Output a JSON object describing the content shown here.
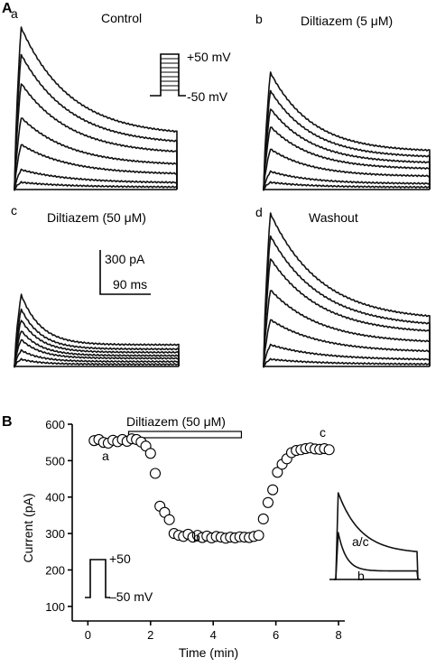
{
  "panel_A": {
    "label": "A",
    "sub_a": {
      "letter": "a",
      "title": "Control"
    },
    "sub_b": {
      "letter": "b",
      "title": "Diltiazem (5 μM)"
    },
    "sub_c": {
      "letter": "c",
      "title": "Diltiazem (50 μM)"
    },
    "sub_d": {
      "letter": "d",
      "title": "Washout"
    },
    "protocol_top": "+50 mV",
    "protocol_bottom": "-50 mV",
    "scale_current": "300 pA",
    "scale_time": "90 ms"
  },
  "panel_B": {
    "label": "B",
    "drug_bar": "Diltiazem (50 μM)",
    "marker_a": "a",
    "marker_b": "b",
    "marker_c": "c",
    "protocol_top": "+50",
    "protocol_bottom": "–50 mV",
    "inset_ac": "a/c",
    "inset_b": "b"
  },
  "chart_data": {
    "type": "scatter",
    "xlabel": "Time (min)",
    "ylabel": "Current (pA)",
    "xlim": [
      -0.5,
      8.2
    ],
    "ylim": [
      60,
      600
    ],
    "xticks": [
      "0",
      "2",
      "4",
      "6",
      "8"
    ],
    "yticks": [
      "100",
      "200",
      "300",
      "400",
      "500",
      "600"
    ],
    "drug_interval": [
      1.3,
      4.9
    ],
    "x": [
      0.2,
      0.35,
      0.5,
      0.65,
      0.8,
      0.95,
      1.1,
      1.25,
      1.4,
      1.55,
      1.7,
      1.85,
      2.0,
      2.15,
      2.3,
      2.45,
      2.6,
      2.75,
      2.9,
      3.05,
      3.2,
      3.35,
      3.5,
      3.65,
      3.8,
      3.95,
      4.1,
      4.25,
      4.4,
      4.55,
      4.7,
      4.85,
      5.0,
      5.15,
      5.3,
      5.45,
      5.6,
      5.75,
      5.9,
      6.05,
      6.2,
      6.35,
      6.5,
      6.65,
      6.8,
      6.95,
      7.1,
      7.25,
      7.4,
      7.55,
      7.7
    ],
    "y": [
      555,
      558,
      550,
      548,
      556,
      552,
      558,
      553,
      560,
      558,
      551,
      540,
      520,
      465,
      375,
      358,
      338,
      300,
      295,
      292,
      298,
      290,
      295,
      289,
      293,
      288,
      292,
      290,
      287,
      290,
      288,
      291,
      290,
      289,
      292,
      295,
      340,
      385,
      420,
      468,
      490,
      505,
      522,
      528,
      530,
      533,
      535,
      532,
      531,
      533,
      530
    ]
  }
}
